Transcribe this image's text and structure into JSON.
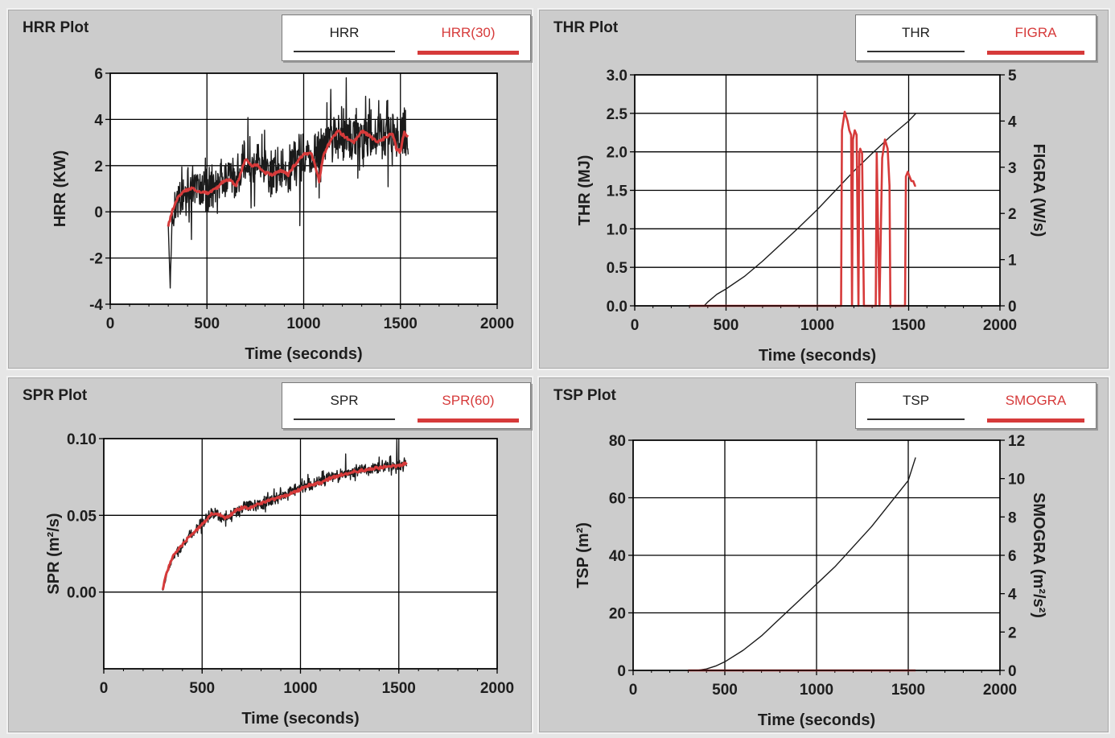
{
  "colors": {
    "primary": "#1a1a1a",
    "secondary": "#d63a3a",
    "panel_bg": "#cccccc",
    "plot_bg": "#ffffff",
    "grid": "#000000"
  },
  "chart_data": [
    {
      "type": "line",
      "title": "HRR Plot",
      "xlabel": "Time (seconds)",
      "ylabel": "HRR (KW)",
      "xlim": [
        0,
        2000
      ],
      "ylim": [
        -4,
        6
      ],
      "xticks": [
        "0",
        "500",
        "1000",
        "1500",
        "2000"
      ],
      "yticks": [
        "-4",
        "-2",
        "0",
        "2",
        "4",
        "6"
      ],
      "legend": "top-right",
      "grid": true,
      "series": [
        {
          "name": "HRR",
          "color": "#1a1a1a",
          "style": "noisy",
          "x": [
            300,
            310,
            320,
            350,
            400,
            450,
            500,
            550,
            600,
            650,
            700,
            750,
            800,
            850,
            900,
            950,
            1000,
            1050,
            1100,
            1150,
            1200,
            1250,
            1300,
            1350,
            1400,
            1450,
            1500,
            1540
          ],
          "y": [
            -0.5,
            -3.3,
            -0.2,
            0.5,
            1.0,
            1.1,
            0.8,
            1.4,
            1.3,
            1.5,
            2.2,
            2.0,
            1.8,
            1.7,
            1.7,
            2.0,
            2.3,
            2.6,
            2.9,
            3.1,
            3.4,
            3.2,
            3.0,
            3.3,
            3.4,
            3.0,
            3.3,
            3.2
          ],
          "amplitude": [
            0,
            0,
            0.8,
            1.1,
            1.3,
            1.4,
            1.5,
            1.5,
            1.5,
            1.5,
            1.6,
            1.6,
            1.6,
            1.7,
            1.7,
            1.7,
            1.8,
            1.8,
            1.8,
            1.8,
            1.9,
            1.8,
            1.8,
            1.8,
            1.8,
            1.8,
            1.8,
            1.7
          ],
          "peaks": [
            [
              1140,
              5.3
            ],
            [
              1220,
              5.8
            ],
            [
              1320,
              5.0
            ],
            [
              1430,
              4.8
            ],
            [
              1520,
              4.5
            ],
            [
              980,
              -0.6
            ],
            [
              420,
              -1.2
            ],
            [
              1080,
              0.6
            ]
          ]
        },
        {
          "name": "HRR(30)",
          "color": "#d63a3a",
          "style": "smooth",
          "x": [
            300,
            320,
            350,
            380,
            420,
            460,
            500,
            550,
            580,
            620,
            650,
            680,
            700,
            730,
            760,
            800,
            840,
            880,
            920,
            950,
            1000,
            1040,
            1060,
            1080,
            1100,
            1140,
            1180,
            1220,
            1260,
            1300,
            1340,
            1380,
            1420,
            1460,
            1480,
            1500,
            1520,
            1540
          ],
          "y": [
            -0.6,
            0.0,
            0.6,
            0.9,
            1.0,
            0.9,
            0.8,
            1.0,
            1.3,
            1.4,
            1.1,
            1.8,
            2.3,
            2.0,
            2.0,
            1.7,
            1.6,
            1.8,
            1.6,
            2.0,
            2.5,
            2.5,
            2.0,
            1.3,
            2.4,
            3.1,
            3.5,
            3.2,
            3.0,
            3.5,
            3.3,
            3.0,
            3.2,
            3.4,
            2.7,
            2.6,
            3.5,
            3.2
          ]
        }
      ]
    },
    {
      "type": "line",
      "title": "THR Plot",
      "xlabel": "Time (seconds)",
      "ylabel": "THR (MJ)",
      "y2label": "FIGRA (W/s)",
      "xlim": [
        0,
        2000
      ],
      "ylim": [
        0.0,
        3.0
      ],
      "y2lim": [
        0,
        5
      ],
      "xticks": [
        "0",
        "500",
        "1000",
        "1500",
        "2000"
      ],
      "yticks": [
        "0.0",
        "0.5",
        "1.0",
        "1.5",
        "2.0",
        "2.5",
        "3.0"
      ],
      "y2ticks": [
        "0",
        "1",
        "2",
        "3",
        "4",
        "5"
      ],
      "legend": "top-right",
      "grid": true,
      "series": [
        {
          "name": "THR",
          "color": "#1a1a1a",
          "style": "plain",
          "axis": "left",
          "x": [
            300,
            380,
            400,
            450,
            500,
            600,
            700,
            800,
            900,
            1000,
            1100,
            1200,
            1300,
            1400,
            1500,
            1540
          ],
          "y": [
            0.0,
            0.0,
            0.05,
            0.15,
            0.22,
            0.38,
            0.58,
            0.8,
            1.02,
            1.25,
            1.5,
            1.75,
            1.98,
            2.2,
            2.4,
            2.5
          ]
        },
        {
          "name": "FIGRA",
          "color": "#d63a3a",
          "style": "plain",
          "axis": "right",
          "x": [
            300,
            1130,
            1135,
            1150,
            1165,
            1175,
            1185,
            1190,
            1195,
            1205,
            1215,
            1225,
            1230,
            1235,
            1245,
            1255,
            1265,
            1275,
            1280,
            1320,
            1325,
            1340,
            1355,
            1370,
            1385,
            1395,
            1400,
            1480,
            1485,
            1495,
            1505,
            1515,
            1525,
            1535,
            1540
          ],
          "y": [
            0,
            0,
            3.8,
            4.2,
            4.0,
            3.8,
            3.7,
            0,
            3.6,
            3.8,
            3.7,
            0,
            3.3,
            3.4,
            3.3,
            0,
            0,
            0,
            0,
            0,
            3.3,
            0,
            3.2,
            3.6,
            3.4,
            2.6,
            0,
            0,
            2.8,
            2.9,
            2.8,
            2.7,
            2.7,
            2.6,
            2.6
          ]
        }
      ]
    },
    {
      "type": "line",
      "title": "SPR Plot",
      "xlabel": "Time (seconds)",
      "ylabel": "SPR (m²/s)",
      "xlim": [
        0,
        2000
      ],
      "ylim": [
        -0.05,
        0.1
      ],
      "xticks": [
        "0",
        "500",
        "1000",
        "1500",
        "2000"
      ],
      "yticks": [
        "0.00",
        "0.05",
        "0.10"
      ],
      "ytick_values": [
        0.0,
        0.05,
        0.1
      ],
      "legend": "top-right",
      "grid": true,
      "series": [
        {
          "name": "SPR",
          "color": "#1a1a1a",
          "style": "noisy",
          "x": [
            300,
            320,
            350,
            400,
            450,
            500,
            550,
            580,
            600,
            650,
            700,
            750,
            800,
            850,
            900,
            950,
            1000,
            1050,
            1100,
            1150,
            1200,
            1250,
            1300,
            1350,
            1400,
            1450,
            1500,
            1540
          ],
          "y": [
            0.001,
            0.012,
            0.022,
            0.03,
            0.038,
            0.045,
            0.052,
            0.05,
            0.048,
            0.05,
            0.055,
            0.056,
            0.058,
            0.06,
            0.062,
            0.065,
            0.068,
            0.07,
            0.072,
            0.075,
            0.076,
            0.078,
            0.08,
            0.08,
            0.081,
            0.082,
            0.083,
            0.084
          ],
          "amplitude": [
            0,
            0.003,
            0.004,
            0.005,
            0.005,
            0.006,
            0.006,
            0.006,
            0.006,
            0.006,
            0.006,
            0.006,
            0.006,
            0.006,
            0.006,
            0.006,
            0.006,
            0.006,
            0.006,
            0.006,
            0.006,
            0.006,
            0.006,
            0.006,
            0.006,
            0.006,
            0.006,
            0.005
          ],
          "peaks": [
            [
              1490,
              0.1
            ],
            [
              1230,
              0.09
            ],
            [
              1400,
              0.088
            ]
          ]
        },
        {
          "name": "SPR(60)",
          "color": "#d63a3a",
          "style": "smooth",
          "x": [
            300,
            320,
            350,
            400,
            450,
            500,
            550,
            580,
            620,
            660,
            700,
            750,
            800,
            850,
            900,
            950,
            1000,
            1050,
            1100,
            1150,
            1200,
            1250,
            1300,
            1350,
            1400,
            1450,
            1500,
            1540
          ],
          "y": [
            0.002,
            0.013,
            0.023,
            0.031,
            0.038,
            0.044,
            0.051,
            0.051,
            0.048,
            0.052,
            0.055,
            0.055,
            0.058,
            0.06,
            0.062,
            0.064,
            0.067,
            0.07,
            0.071,
            0.074,
            0.076,
            0.078,
            0.079,
            0.08,
            0.081,
            0.082,
            0.082,
            0.084
          ]
        }
      ]
    },
    {
      "type": "line",
      "title": "TSP Plot",
      "xlabel": "Time (seconds)",
      "ylabel": "TSP (m²)",
      "y2label": "SMOGRA (m²/s²)",
      "xlim": [
        0,
        2000
      ],
      "ylim": [
        0,
        80
      ],
      "y2lim": [
        0,
        12
      ],
      "xticks": [
        "0",
        "500",
        "1000",
        "1500",
        "2000"
      ],
      "yticks": [
        "0",
        "20",
        "40",
        "60",
        "80"
      ],
      "y2ticks": [
        "0",
        "2",
        "4",
        "6",
        "8",
        "10",
        "12"
      ],
      "legend": "top-right",
      "grid": true,
      "series": [
        {
          "name": "TSP",
          "color": "#1a1a1a",
          "style": "plain",
          "axis": "left",
          "x": [
            300,
            350,
            400,
            450,
            500,
            600,
            700,
            800,
            900,
            1000,
            1100,
            1200,
            1300,
            1400,
            1500,
            1540
          ],
          "y": [
            0,
            0,
            0.5,
            1.5,
            3.0,
            7.0,
            12.0,
            18.0,
            24.0,
            30.0,
            36.0,
            43.0,
            50.0,
            58.0,
            66.0,
            74.0
          ]
        },
        {
          "name": "SMOGRA",
          "color": "#d63a3a",
          "style": "plain",
          "axis": "right",
          "x": [
            300,
            1540
          ],
          "y": [
            0,
            0
          ]
        }
      ]
    }
  ]
}
